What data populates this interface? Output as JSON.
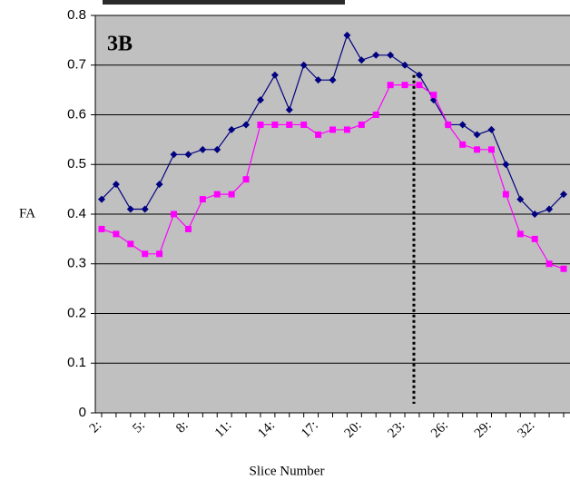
{
  "chart_data": {
    "type": "line",
    "annotation": "3B",
    "x_label": "Slice Number",
    "y_label": "FA",
    "categories": [
      "2:",
      null,
      null,
      "5:",
      null,
      null,
      "8:",
      null,
      null,
      "11:",
      null,
      null,
      "14:",
      null,
      null,
      "17:",
      null,
      null,
      "20:",
      null,
      null,
      "23:",
      null,
      null,
      "26:",
      null,
      null,
      "29:",
      null,
      null,
      "32:",
      null,
      null
    ],
    "series": [
      {
        "color": "#000080",
        "marker": "diamond",
        "values": [
          0.43,
          0.46,
          0.41,
          0.41,
          0.46,
          0.52,
          0.52,
          0.53,
          0.53,
          0.57,
          0.58,
          0.63,
          0.68,
          0.61,
          0.7,
          0.67,
          0.67,
          0.76,
          0.71,
          0.72,
          0.72,
          0.7,
          0.68,
          0.63,
          0.58,
          0.58,
          0.56,
          0.57,
          0.5,
          0.43,
          0.4,
          0.41,
          0.44
        ]
      },
      {
        "color": "#ff00ff",
        "marker": "square",
        "values": [
          0.37,
          0.36,
          0.34,
          0.32,
          0.32,
          0.4,
          0.37,
          0.43,
          0.44,
          0.44,
          0.47,
          0.58,
          0.58,
          0.58,
          0.58,
          0.56,
          0.57,
          0.57,
          0.58,
          0.6,
          0.66,
          0.66,
          0.66,
          0.64,
          0.58,
          0.54,
          0.53,
          0.53,
          0.44,
          0.36,
          0.35,
          0.3,
          0.29
        ]
      }
    ],
    "ylim": [
      0,
      0.8
    ],
    "yticks": [
      0,
      0.1,
      0.2,
      0.3,
      0.4,
      0.5,
      0.6,
      0.7,
      0.8
    ],
    "grid": true,
    "background": "#c0c0c0"
  }
}
